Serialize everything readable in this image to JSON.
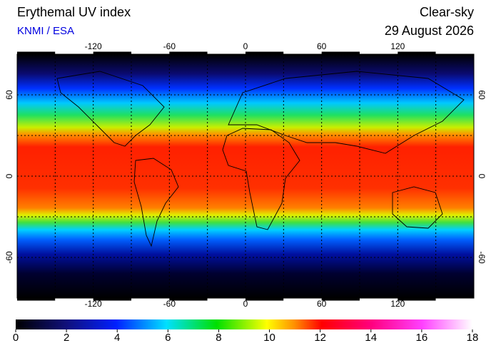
{
  "header": {
    "title": "Erythemal UV index",
    "source": "KNMI / ESA",
    "condition": "Clear-sky",
    "date": "29 August 2026"
  },
  "map": {
    "lon_ticks": [
      -120,
      -60,
      0,
      60,
      120
    ],
    "lat_ticks": [
      60,
      0,
      -60
    ]
  },
  "colorbar": {
    "ticks": [
      0,
      2,
      4,
      6,
      8,
      10,
      12,
      14,
      16,
      18
    ]
  }
}
